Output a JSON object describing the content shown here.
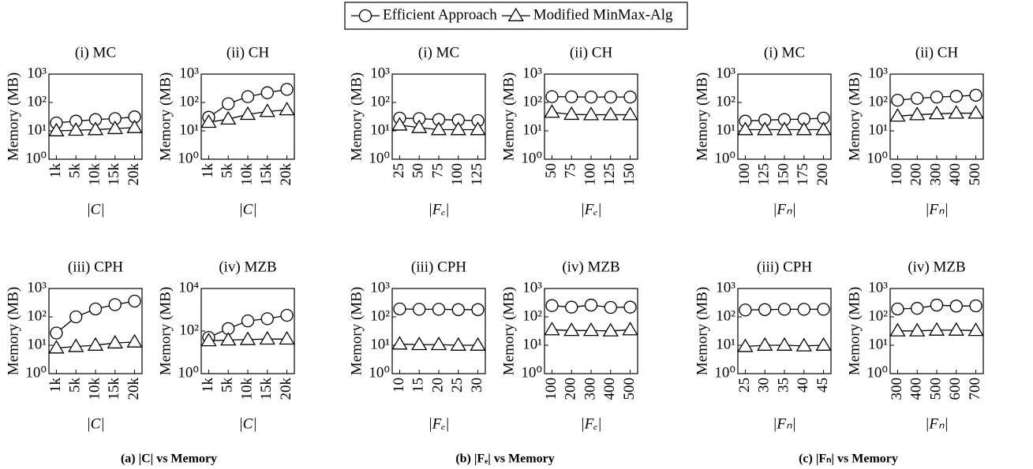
{
  "chart_data": [
    {
      "type": "line",
      "title": "(i) MC",
      "x_label": "|C|",
      "y_label": "Memory (MB)",
      "log_y": true,
      "categories": [
        "1k",
        "5k",
        "10k",
        "15k",
        "20k"
      ],
      "ylim": [
        1,
        1000
      ],
      "yticks": [
        {
          "value": 1,
          "label": "10⁰"
        },
        {
          "value": 10,
          "label": "10¹"
        },
        {
          "value": 100,
          "label": "10²"
        },
        {
          "value": 1000,
          "label": "10³"
        }
      ],
      "series": [
        {
          "name": "Efficient Approach",
          "color": "#000000",
          "marker": "circle",
          "values": [
            19,
            22,
            25,
            27,
            31
          ]
        },
        {
          "name": "Modified MinMax-Alg",
          "color": "#000000",
          "marker": "triangle",
          "values": [
            10,
            10.5,
            11,
            12,
            13
          ]
        }
      ]
    },
    {
      "type": "line",
      "title": "(ii) CH",
      "x_label": "|C|",
      "y_label": "Memory (MB)",
      "log_y": true,
      "categories": [
        "1k",
        "5k",
        "10k",
        "15k",
        "20k"
      ],
      "ylim": [
        1,
        1000
      ],
      "yticks": [
        {
          "value": 1,
          "label": "10⁰"
        },
        {
          "value": 10,
          "label": "10¹"
        },
        {
          "value": 100,
          "label": "10²"
        },
        {
          "value": 1000,
          "label": "10³"
        }
      ],
      "series": [
        {
          "name": "Efficient Approach",
          "color": "#000000",
          "marker": "circle",
          "values": [
            30,
            90,
            160,
            220,
            290
          ]
        },
        {
          "name": "Modified MinMax-Alg",
          "color": "#000000",
          "marker": "triangle",
          "values": [
            20,
            26,
            38,
            48,
            55
          ]
        }
      ]
    },
    {
      "type": "line",
      "title": "(i) MC",
      "x_label": "|Fₑ|",
      "y_label": "Memory (MB)",
      "log_y": true,
      "categories": [
        "25",
        "50",
        "75",
        "100",
        "125"
      ],
      "ylim": [
        1,
        1000
      ],
      "yticks": [
        {
          "value": 1,
          "label": "10⁰"
        },
        {
          "value": 10,
          "label": "10¹"
        },
        {
          "value": 100,
          "label": "10²"
        },
        {
          "value": 1000,
          "label": "10³"
        }
      ],
      "series": [
        {
          "name": "Efficient Approach",
          "color": "#000000",
          "marker": "circle",
          "values": [
            28,
            27,
            25,
            24,
            23
          ]
        },
        {
          "name": "Modified MinMax-Alg",
          "color": "#000000",
          "marker": "triangle",
          "values": [
            16,
            13,
            11,
            11,
            11
          ]
        }
      ]
    },
    {
      "type": "line",
      "title": "(ii) CH",
      "x_label": "|Fₑ|",
      "y_label": "Memory (MB)",
      "log_y": true,
      "categories": [
        "50",
        "75",
        "100",
        "125",
        "150"
      ],
      "ylim": [
        1,
        1000
      ],
      "yticks": [
        {
          "value": 1,
          "label": "10⁰"
        },
        {
          "value": 10,
          "label": "10¹"
        },
        {
          "value": 100,
          "label": "10²"
        },
        {
          "value": 1000,
          "label": "10³"
        }
      ],
      "series": [
        {
          "name": "Efficient Approach",
          "color": "#000000",
          "marker": "circle",
          "values": [
            160,
            158,
            155,
            155,
            155
          ]
        },
        {
          "name": "Modified MinMax-Alg",
          "color": "#000000",
          "marker": "triangle",
          "values": [
            45,
            38,
            37,
            37,
            37
          ]
        }
      ]
    },
    {
      "type": "line",
      "title": "(i) MC",
      "x_label": "|Fₙ|",
      "y_label": "Memory (MB)",
      "log_y": true,
      "categories": [
        "100",
        "125",
        "150",
        "175",
        "200"
      ],
      "ylim": [
        1,
        1000
      ],
      "yticks": [
        {
          "value": 1,
          "label": "10⁰"
        },
        {
          "value": 10,
          "label": "10¹"
        },
        {
          "value": 100,
          "label": "10²"
        },
        {
          "value": 1000,
          "label": "10³"
        }
      ],
      "series": [
        {
          "name": "Efficient Approach",
          "color": "#000000",
          "marker": "circle",
          "values": [
            22,
            24,
            25,
            26,
            28
          ]
        },
        {
          "name": "Modified MinMax-Alg",
          "color": "#000000",
          "marker": "triangle",
          "values": [
            11,
            11,
            11,
            11,
            11
          ]
        }
      ]
    },
    {
      "type": "line",
      "title": "(ii) CH",
      "x_label": "|Fₙ|",
      "y_label": "Memory (MB)",
      "log_y": true,
      "categories": [
        "100",
        "200",
        "300",
        "400",
        "500"
      ],
      "ylim": [
        1,
        1000
      ],
      "yticks": [
        {
          "value": 1,
          "label": "10⁰"
        },
        {
          "value": 10,
          "label": "10¹"
        },
        {
          "value": 100,
          "label": "10²"
        },
        {
          "value": 1000,
          "label": "10³"
        }
      ],
      "series": [
        {
          "name": "Efficient Approach",
          "color": "#000000",
          "marker": "circle",
          "values": [
            120,
            140,
            155,
            165,
            180
          ]
        },
        {
          "name": "Modified MinMax-Alg",
          "color": "#000000",
          "marker": "triangle",
          "values": [
            33,
            37,
            40,
            42,
            42
          ]
        }
      ]
    },
    {
      "type": "line",
      "title": "(iii) CPH",
      "x_label": "|C|",
      "y_label": "Memory (MB)",
      "log_y": true,
      "categories": [
        "1k",
        "5k",
        "10k",
        "15k",
        "20k"
      ],
      "ylim": [
        1,
        1000
      ],
      "yticks": [
        {
          "value": 1,
          "label": "10⁰"
        },
        {
          "value": 10,
          "label": "10¹"
        },
        {
          "value": 100,
          "label": "10²"
        },
        {
          "value": 1000,
          "label": "10³"
        }
      ],
      "series": [
        {
          "name": "Efficient Approach",
          "color": "#000000",
          "marker": "circle",
          "values": [
            27,
            100,
            190,
            270,
            360
          ]
        },
        {
          "name": "Modified MinMax-Alg",
          "color": "#000000",
          "marker": "triangle",
          "values": [
            8,
            9,
            10,
            12,
            13
          ]
        }
      ]
    },
    {
      "type": "line",
      "title": "(iv) MZB",
      "x_label": "|C|",
      "y_label": "Memory (MB)",
      "log_y": true,
      "categories": [
        "1k",
        "5k",
        "10k",
        "15k",
        "20k"
      ],
      "ylim": [
        1,
        10000
      ],
      "yticks": [
        {
          "value": 1,
          "label": "10⁰"
        },
        {
          "value": 100,
          "label": "10²"
        },
        {
          "value": 10000,
          "label": "10⁴"
        }
      ],
      "series": [
        {
          "name": "Efficient Approach",
          "color": "#000000",
          "marker": "circle",
          "values": [
            50,
            130,
            300,
            380,
            550
          ]
        },
        {
          "name": "Modified MinMax-Alg",
          "color": "#000000",
          "marker": "triangle",
          "values": [
            35,
            38,
            40,
            42,
            42
          ]
        }
      ]
    },
    {
      "type": "line",
      "title": "(iii) CPH",
      "x_label": "|Fₑ|",
      "y_label": "Memory (MB)",
      "log_y": true,
      "categories": [
        "10",
        "15",
        "20",
        "25",
        "30"
      ],
      "ylim": [
        1,
        1000
      ],
      "yticks": [
        {
          "value": 1,
          "label": "10⁰"
        },
        {
          "value": 10,
          "label": "10¹"
        },
        {
          "value": 100,
          "label": "10²"
        },
        {
          "value": 1000,
          "label": "10³"
        }
      ],
      "series": [
        {
          "name": "Efficient Approach",
          "color": "#000000",
          "marker": "circle",
          "values": [
            190,
            185,
            185,
            180,
            180
          ]
        },
        {
          "name": "Modified MinMax-Alg",
          "color": "#000000",
          "marker": "triangle",
          "values": [
            11,
            10.5,
            10.5,
            10,
            10
          ]
        }
      ]
    },
    {
      "type": "line",
      "title": "(iv) MZB",
      "x_label": "|Fₑ|",
      "y_label": "Memory (MB)",
      "log_y": true,
      "categories": [
        "100",
        "200",
        "300",
        "400",
        "500"
      ],
      "ylim": [
        1,
        1000
      ],
      "yticks": [
        {
          "value": 1,
          "label": "10⁰"
        },
        {
          "value": 10,
          "label": "10¹"
        },
        {
          "value": 100,
          "label": "10²"
        },
        {
          "value": 1000,
          "label": "10³"
        }
      ],
      "series": [
        {
          "name": "Efficient Approach",
          "color": "#000000",
          "marker": "circle",
          "values": [
            250,
            220,
            260,
            215,
            220
          ]
        },
        {
          "name": "Modified MinMax-Alg",
          "color": "#000000",
          "marker": "triangle",
          "values": [
            35,
            33,
            33,
            32,
            35
          ]
        }
      ]
    },
    {
      "type": "line",
      "title": "(iii) CPH",
      "x_label": "|Fₙ|",
      "y_label": "Memory (MB)",
      "log_y": true,
      "categories": [
        "25",
        "30",
        "35",
        "40",
        "45"
      ],
      "ylim": [
        1,
        1000
      ],
      "yticks": [
        {
          "value": 1,
          "label": "10⁰"
        },
        {
          "value": 10,
          "label": "10¹"
        },
        {
          "value": 100,
          "label": "10²"
        },
        {
          "value": 1000,
          "label": "10³"
        }
      ],
      "series": [
        {
          "name": "Efficient Approach",
          "color": "#000000",
          "marker": "circle",
          "values": [
            175,
            180,
            185,
            185,
            185
          ]
        },
        {
          "name": "Modified MinMax-Alg",
          "color": "#000000",
          "marker": "triangle",
          "values": [
            9,
            10,
            10,
            9.5,
            10
          ]
        }
      ]
    },
    {
      "type": "line",
      "title": "(iv) MZB",
      "x_label": "|Fₙ|",
      "y_label": "Memory (MB)",
      "log_y": true,
      "categories": [
        "300",
        "400",
        "500",
        "600",
        "700"
      ],
      "ylim": [
        1,
        1000
      ],
      "yticks": [
        {
          "value": 1,
          "label": "10⁰"
        },
        {
          "value": 10,
          "label": "10¹"
        },
        {
          "value": 100,
          "label": "10²"
        },
        {
          "value": 1000,
          "label": "10³"
        }
      ],
      "series": [
        {
          "name": "Efficient Approach",
          "color": "#000000",
          "marker": "circle",
          "values": [
            190,
            200,
            260,
            240,
            245
          ]
        },
        {
          "name": "Modified MinMax-Alg",
          "color": "#000000",
          "marker": "triangle",
          "values": [
            32,
            32,
            34,
            34,
            33
          ]
        }
      ]
    }
  ],
  "captions": [
    "(a) |C| vs Memory",
    "(b) |Fₑ| vs Memory",
    "(c) |Fₙ| vs Memory"
  ]
}
